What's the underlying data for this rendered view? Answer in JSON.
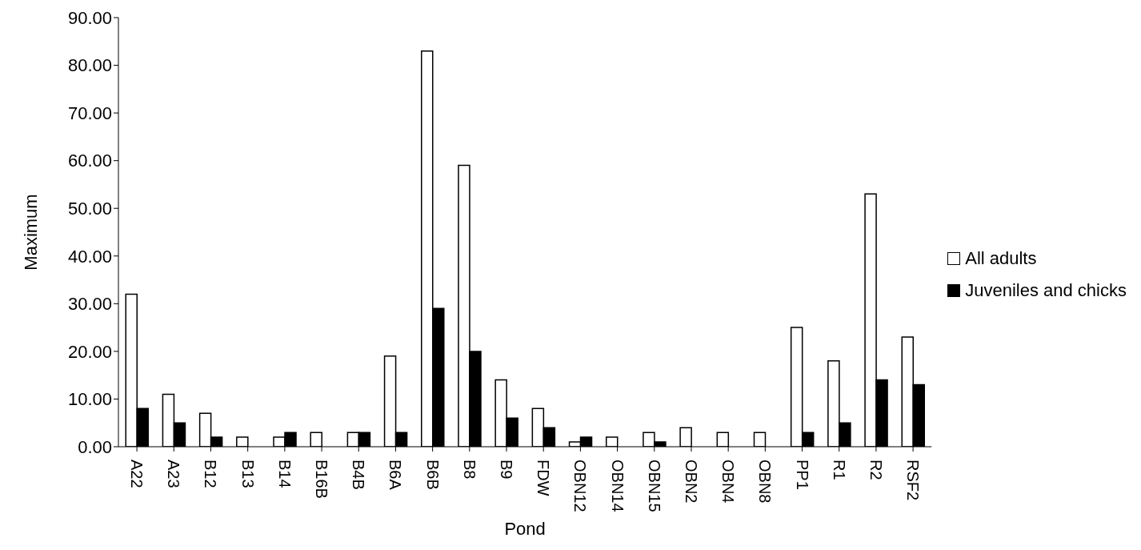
{
  "chart_data": {
    "type": "bar",
    "xlabel": "Pond",
    "ylabel": "Maximum",
    "categories": [
      "A22",
      "A23",
      "B12",
      "B13",
      "B14",
      "B16B",
      "B4B",
      "B6A",
      "B6B",
      "B8",
      "B9",
      "FDW",
      "OBN12",
      "OBN14",
      "OBN15",
      "OBN2",
      "OBN4",
      "OBN8",
      "PP1",
      "R1",
      "R2",
      "RSF2"
    ],
    "series": [
      {
        "name": "All adults",
        "color": "#ffffff",
        "values": [
          32,
          11,
          7,
          2,
          2,
          3,
          3,
          19,
          83,
          59,
          14,
          8,
          1,
          2,
          3,
          4,
          3,
          3,
          25,
          18,
          53,
          23
        ]
      },
      {
        "name": "Juveniles and chicks",
        "color": "#000000",
        "values": [
          8,
          5,
          2,
          0,
          3,
          0,
          3,
          3,
          29,
          20,
          6,
          4,
          2,
          0,
          1,
          0,
          0,
          0,
          3,
          5,
          14,
          13
        ]
      }
    ],
    "ylim": [
      0,
      90
    ],
    "yticks": [
      {
        "value": 0,
        "label": "0.00"
      },
      {
        "value": 10,
        "label": "10.00"
      },
      {
        "value": 20,
        "label": "20.00"
      },
      {
        "value": 30,
        "label": "30.00"
      },
      {
        "value": 40,
        "label": "40.00"
      },
      {
        "value": 50,
        "label": "50.00"
      },
      {
        "value": 60,
        "label": "60.00"
      },
      {
        "value": 70,
        "label": "70.00"
      },
      {
        "value": 80,
        "label": "80.00"
      },
      {
        "value": 90,
        "label": "90.00"
      }
    ],
    "grid": false,
    "legend": "right"
  }
}
